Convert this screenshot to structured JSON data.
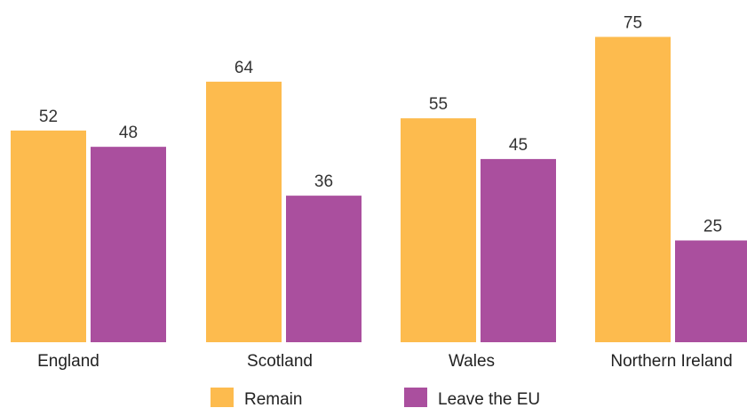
{
  "chart_data": {
    "type": "bar",
    "categories": [
      "England",
      "Scotland",
      "Wales",
      "Northern Ireland"
    ],
    "series": [
      {
        "name": "Remain",
        "values": [
          52,
          64,
          55,
          75
        ],
        "color": "#FDBB4E"
      },
      {
        "name": "Leave the EU",
        "values": [
          48,
          36,
          45,
          25
        ],
        "color": "#AA4F9E"
      }
    ],
    "title": "",
    "xlabel": "",
    "ylabel": "",
    "ylim": [
      0,
      75
    ],
    "grid": false,
    "legend_position": "bottom-center",
    "data_labels": true
  }
}
